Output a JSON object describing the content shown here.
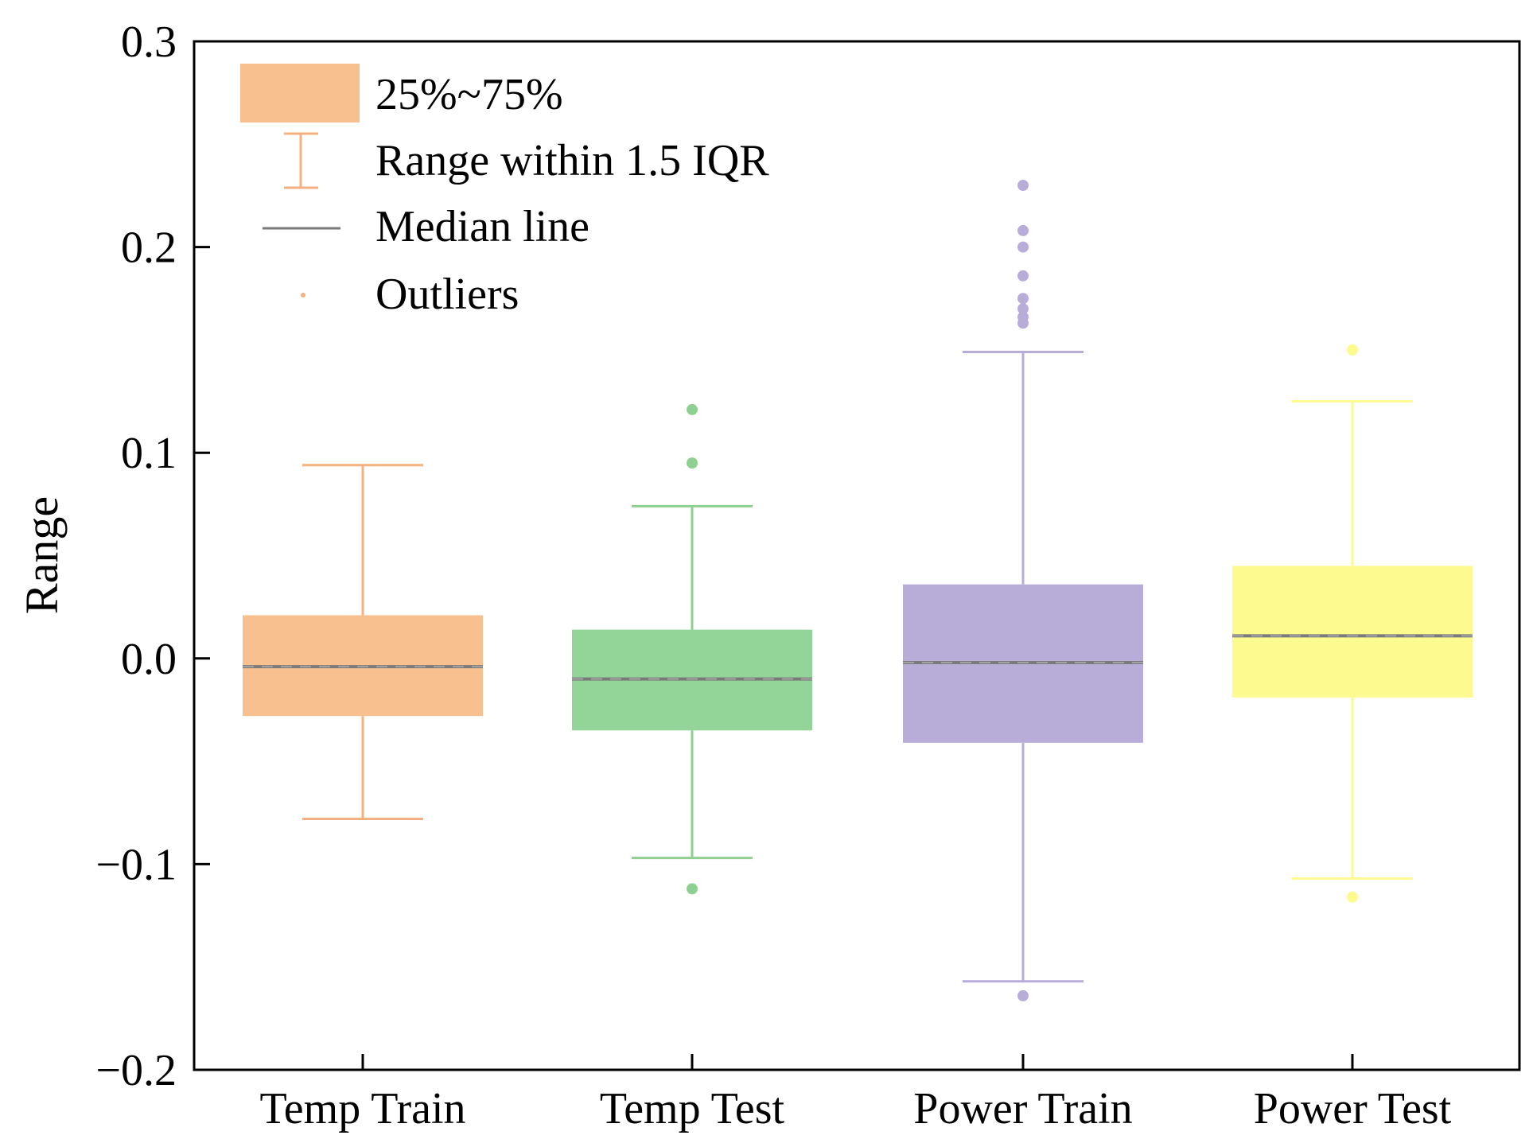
{
  "chart_data": {
    "type": "box",
    "title": "",
    "xlabel": "",
    "ylabel": "Range",
    "ylim": [
      -0.2,
      0.3
    ],
    "yticks": [
      -0.2,
      -0.1,
      0.0,
      0.1,
      0.2,
      0.3
    ],
    "ytick_labels": [
      "−0.2",
      "−0.1",
      "0.0",
      "0.1",
      "0.2",
      "0.3"
    ],
    "categories": [
      "Temp Train",
      "Temp Test",
      "Power Train",
      "Power Test"
    ],
    "boxes": [
      {
        "name": "Temp Train",
        "color": "#f9c08f",
        "whisker_color": "#f5b07f",
        "q1": -0.028,
        "median": -0.004,
        "mean": -0.004,
        "q3": 0.021,
        "whisker_low": -0.078,
        "whisker_high": 0.094,
        "outliers": []
      },
      {
        "name": "Temp Test",
        "color": "#93d598",
        "whisker_color": "#8ed08f",
        "q1": -0.035,
        "median": -0.01,
        "mean": -0.01,
        "q3": 0.014,
        "whisker_low": -0.097,
        "whisker_high": 0.074,
        "outliers": [
          0.121,
          0.095,
          -0.112
        ]
      },
      {
        "name": "Power Train",
        "color": "#b8add8",
        "whisker_color": "#b8add8",
        "q1": -0.041,
        "median": -0.002,
        "mean": -0.002,
        "q3": 0.036,
        "whisker_low": -0.157,
        "whisker_high": 0.149,
        "outliers": [
          0.23,
          0.208,
          0.2,
          0.186,
          0.175,
          0.17,
          0.166,
          0.163,
          -0.164
        ]
      },
      {
        "name": "Power Test",
        "color": "#fdfb8f",
        "whisker_color": "#fdfb8f",
        "q1": -0.019,
        "median": 0.011,
        "mean": 0.011,
        "q3": 0.045,
        "whisker_low": -0.107,
        "whisker_high": 0.125,
        "outliers": [
          0.15,
          -0.116
        ]
      }
    ],
    "legend": {
      "position": "top-left",
      "entries": [
        "25%~75%",
        "Range within 1.5 IQR",
        "Median line",
        "Outliers"
      ],
      "patch_color": "#f9c08f",
      "line_color": "#7a7a7a"
    },
    "median_color": "#7a7a7a"
  }
}
